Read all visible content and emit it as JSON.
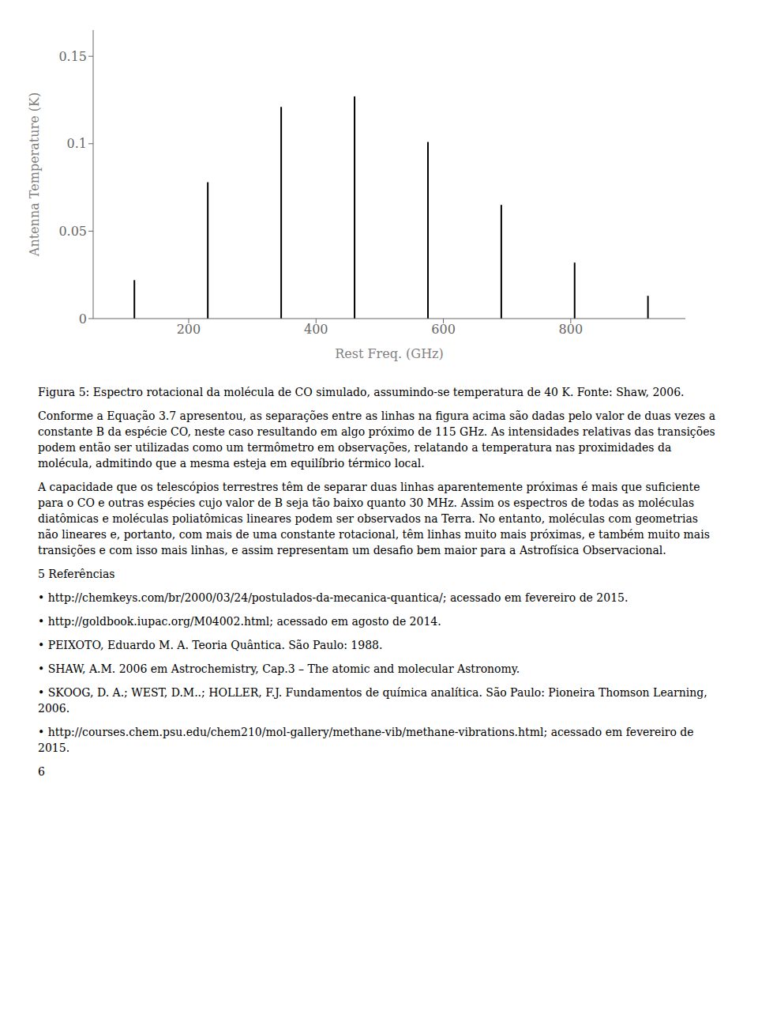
{
  "chart_data": {
    "type": "stem",
    "x": [
      115.27,
      230.54,
      345.8,
      461.04,
      576.27,
      691.47,
      806.65,
      921.8
    ],
    "values": [
      0.022,
      0.078,
      0.121,
      0.127,
      0.101,
      0.065,
      0.032,
      0.013
    ],
    "color": "#000000",
    "xlabel": "Rest Freq. (GHz)",
    "ylabel": "Antenna Temperature (K)",
    "xlim": [
      50,
      980
    ],
    "ylim": [
      0,
      0.165
    ],
    "xticks": [
      200,
      400,
      600,
      800
    ],
    "yticks": [
      0,
      0.05,
      0.1,
      0.15
    ],
    "grid": false,
    "annotations": [
      "Figura 5: Espectro rotacional da molécula de CO simulado, assumindo-se temperatura de 40 K. Fonte: Shaw, 2006.",
      "Conforme a Equação 3.7 apresentou, as separações entre as linhas na figura acima são dadas pelo valor de duas vezes a constante B da espécie CO, neste caso resultando em algo próximo de 115 GHz. As intensidades relativas das transições podem então ser utilizadas como um termômetro em observações, relatando a temperatura nas proximidades da molécula, admitindo que a mesma esteja em equilíbrio térmico local.",
      "A capacidade que os telescópios terrestres têm de separar duas linhas aparentemente próximas é mais que suficiente para o CO e outras espécies cujo valor de B seja tão baixo quanto 30 MHz. Assim os espectros de todas as moléculas diatômicas e moléculas poliatômicas lineares podem ser observados na Terra. No entanto, moléculas com geometrias não lineares e, portanto, com mais de uma constante rotacional, têm linhas muito mais próximas, e também muito mais transições e com isso mais linhas, e assim representam um desafio bem maior para a Astrofísica Observacional.",
      "5 Referências",
      "• http://chemkeys.com/br/2000/03/24/postulados-da-mecanica-quantica/; acessado em fevereiro de 2015.",
      "• http://goldbook.iupac.org/M04002.html; acessado em agosto de 2014.",
      "• PEIXOTO, Eduardo M. A. Teoria Quântica. São Paulo: 1988.",
      "• SHAW, A.M. 2006 em Astrochemistry, Cap.3 – The atomic and molecular Astronomy.",
      "• SKOOG, D. A.; WEST, D.M..; HOLLER, F.J. Fundamentos de química analítica. São Paulo: Pioneira Thomson Learning, 2006.",
      "• http://courses.chem.psu.edu/chem210/mol-gallery/methane-vib/methane-vibrations.html; acessado em fevereiro de 2015.",
      "6"
    ]
  }
}
